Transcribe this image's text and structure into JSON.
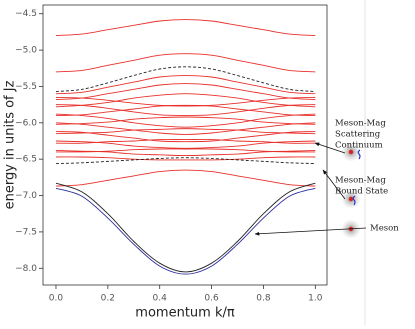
{
  "chart_data": {
    "type": "line",
    "ylabel": "energy in units of Jz",
    "xlabel": "momentum k/π",
    "x": [
      0,
      0.1,
      0.2,
      0.3,
      0.4,
      0.5,
      0.6,
      0.7,
      0.8,
      0.9,
      1
    ],
    "xlim": [
      -0.05,
      1.045
    ],
    "xticks": [
      {
        "value": 0,
        "label": "0.0"
      },
      0.2,
      0.4,
      0.6,
      0.8,
      {
        "value": 1,
        "label": "1.0"
      }
    ],
    "ylim": [
      -8.23,
      -4.38
    ],
    "yticks": [
      {
        "value": -4.5,
        "label": "−4.5"
      },
      {
        "value": -5,
        "label": "−5.0"
      },
      {
        "value": -5.5,
        "label": "−5.5"
      },
      {
        "value": -6,
        "label": "−6.0"
      },
      {
        "value": -6.5,
        "label": "−6.5"
      },
      {
        "value": -7,
        "label": "−7.0"
      },
      {
        "value": -7.5,
        "label": "−7.5"
      },
      {
        "value": -8,
        "label": "−8.0"
      }
    ],
    "series": [
      {
        "color": "#e8302a",
        "values": [
          -4.8,
          -4.78,
          -4.72,
          -4.66,
          -4.6,
          -4.58,
          -4.6,
          -4.66,
          -4.72,
          -4.78,
          -4.8
        ]
      },
      {
        "color": "#e8302a",
        "values": [
          -5.3,
          -5.28,
          -5.21,
          -5.14,
          -5.07,
          -5.05,
          -5.07,
          -5.14,
          -5.21,
          -5.28,
          -5.3
        ]
      },
      {
        "color": "#222222",
        "dash": true,
        "values": [
          -5.57,
          -5.54,
          -5.45,
          -5.35,
          -5.26,
          -5.23,
          -5.26,
          -5.35,
          -5.45,
          -5.54,
          -5.57
        ]
      },
      {
        "color": "#e8302a",
        "values": [
          -5.6,
          -5.58,
          -5.51,
          -5.44,
          -5.37,
          -5.35,
          -5.37,
          -5.44,
          -5.51,
          -5.58,
          -5.6
        ]
      },
      {
        "color": "#e8302a",
        "values": [
          -5.68,
          -5.66,
          -5.6,
          -5.54,
          -5.48,
          -5.46,
          -5.48,
          -5.54,
          -5.6,
          -5.66,
          -5.68
        ]
      },
      {
        "color": "#e8302a",
        "values": [
          -5.78,
          -5.76,
          -5.72,
          -5.66,
          -5.62,
          -5.6,
          -5.62,
          -5.66,
          -5.72,
          -5.76,
          -5.78
        ]
      },
      {
        "color": "#e8302a",
        "values": [
          -5.9,
          -5.89,
          -5.85,
          -5.81,
          -5.77,
          -5.76,
          -5.77,
          -5.81,
          -5.85,
          -5.89,
          -5.9
        ]
      },
      {
        "color": "#e8302a",
        "values": [
          -6.02,
          -6.01,
          -5.99,
          -5.95,
          -5.93,
          -5.92,
          -5.93,
          -5.95,
          -5.99,
          -6.01,
          -6.02
        ]
      },
      {
        "color": "#e8302a",
        "values": [
          -6.15,
          -6.14,
          -6.13,
          -6.1,
          -6.09,
          -6.08,
          -6.09,
          -6.1,
          -6.13,
          -6.14,
          -6.15
        ]
      },
      {
        "color": "#e8302a",
        "values": [
          -6.28,
          -6.28,
          -6.26,
          -6.25,
          -6.23,
          -6.23,
          -6.23,
          -6.25,
          -6.26,
          -6.28,
          -6.28
        ]
      },
      {
        "color": "#e8302a",
        "values": [
          -6.4,
          -6.4,
          -6.39,
          -6.37,
          -6.36,
          -6.36,
          -6.36,
          -6.37,
          -6.39,
          -6.4,
          -6.4
        ]
      },
      {
        "color": "#e8302a",
        "values": [
          -5.65,
          -5.66,
          -5.69,
          -5.73,
          -5.76,
          -5.77,
          -5.76,
          -5.73,
          -5.69,
          -5.66,
          -5.65
        ]
      },
      {
        "color": "#e8302a",
        "values": [
          -5.75,
          -5.76,
          -5.8,
          -5.85,
          -5.89,
          -5.9,
          -5.89,
          -5.85,
          -5.8,
          -5.76,
          -5.75
        ]
      },
      {
        "color": "#e8302a",
        "values": [
          -5.88,
          -5.9,
          -5.94,
          -6.0,
          -6.04,
          -6.06,
          -6.04,
          -6.0,
          -5.94,
          -5.9,
          -5.88
        ]
      },
      {
        "color": "#e8302a",
        "values": [
          -6.0,
          -6.02,
          -6.06,
          -6.1,
          -6.14,
          -6.16,
          -6.14,
          -6.1,
          -6.06,
          -6.02,
          -6.0
        ]
      },
      {
        "color": "#e8302a",
        "values": [
          -6.12,
          -6.13,
          -6.17,
          -6.21,
          -6.25,
          -6.26,
          -6.25,
          -6.21,
          -6.17,
          -6.13,
          -6.12
        ]
      },
      {
        "color": "#e8302a",
        "values": [
          -6.25,
          -6.26,
          -6.28,
          -6.32,
          -6.34,
          -6.35,
          -6.34,
          -6.32,
          -6.28,
          -6.26,
          -6.25
        ]
      },
      {
        "color": "#e8302a",
        "values": [
          -6.38,
          -6.39,
          -6.4,
          -6.43,
          -6.44,
          -6.45,
          -6.44,
          -6.43,
          -6.4,
          -6.39,
          -6.38
        ]
      },
      {
        "color": "#e8302a",
        "values": [
          -6.47,
          -6.47,
          -6.48,
          -6.5,
          -6.51,
          -6.51,
          -6.51,
          -6.5,
          -6.48,
          -6.47,
          -6.47
        ]
      },
      {
        "color": "#222222",
        "dash": true,
        "values": [
          -6.56,
          -6.55,
          -6.53,
          -6.51,
          -6.49,
          -6.48,
          -6.49,
          -6.51,
          -6.53,
          -6.55,
          -6.56
        ]
      },
      {
        "color": "#e8302a",
        "values": [
          -6.87,
          -6.85,
          -6.79,
          -6.73,
          -6.67,
          -6.65,
          -6.67,
          -6.73,
          -6.79,
          -6.85,
          -6.87
        ]
      },
      {
        "color": "#222222",
        "values": [
          -6.83,
          -6.95,
          -7.25,
          -7.63,
          -7.93,
          -8.05,
          -7.93,
          -7.63,
          -7.25,
          -6.95,
          -6.83
        ]
      },
      {
        "color": "#2c2ca0",
        "values": [
          -6.9,
          -7.01,
          -7.31,
          -7.67,
          -7.97,
          -8.08,
          -7.97,
          -7.67,
          -7.31,
          -7.01,
          -6.9
        ]
      }
    ],
    "annotations": [
      {
        "lines": [
          "Meson-Mag",
          "Scattering",
          "Continuum"
        ]
      },
      {
        "lines": [
          "Meson-Mag",
          "Bound State"
        ]
      },
      {
        "lines": [
          "Meson"
        ]
      }
    ]
  }
}
